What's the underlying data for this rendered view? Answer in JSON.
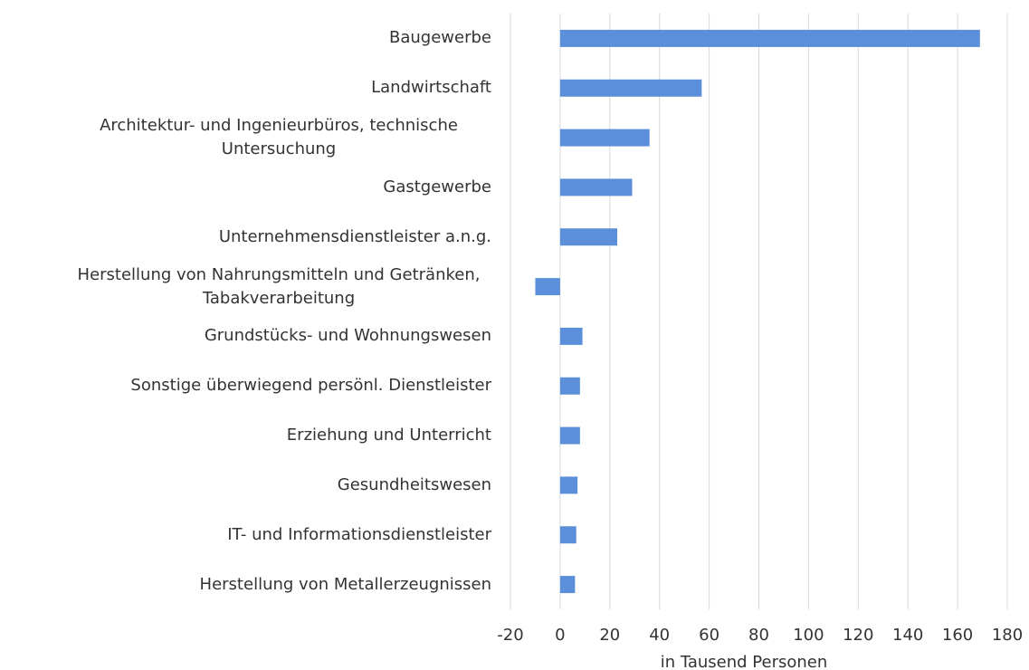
{
  "chart_data": {
    "type": "barh",
    "categories": [
      "Baugewerbe",
      "Landwirtschaft",
      "Architektur- und Ingenieurbüros, technische Untersuchung",
      "Gastgewerbe",
      "Unternehmensdienstleister a.n.g.",
      "Herstellung von Nahrungsmitteln und Getränken, Tabakverarbeitung",
      "Grundstücks- und Wohnungswesen",
      "Sonstige überwiegend persönl. Dienstleister",
      "Erziehung und Unterricht",
      "Gesundheitswesen",
      "IT- und Informationsdienstleister",
      "Herstellung von Metallerzeugnissen"
    ],
    "values": [
      169,
      57,
      36,
      29,
      23,
      -10,
      9,
      8,
      8,
      7,
      6.5,
      6
    ],
    "color": "#5b8fd9",
    "xlabel": "in Tausend Personen",
    "xlim": [
      -20,
      180
    ],
    "xticks": [
      -20,
      0,
      20,
      40,
      60,
      80,
      100,
      120,
      140,
      160,
      180
    ],
    "grid": true
  }
}
